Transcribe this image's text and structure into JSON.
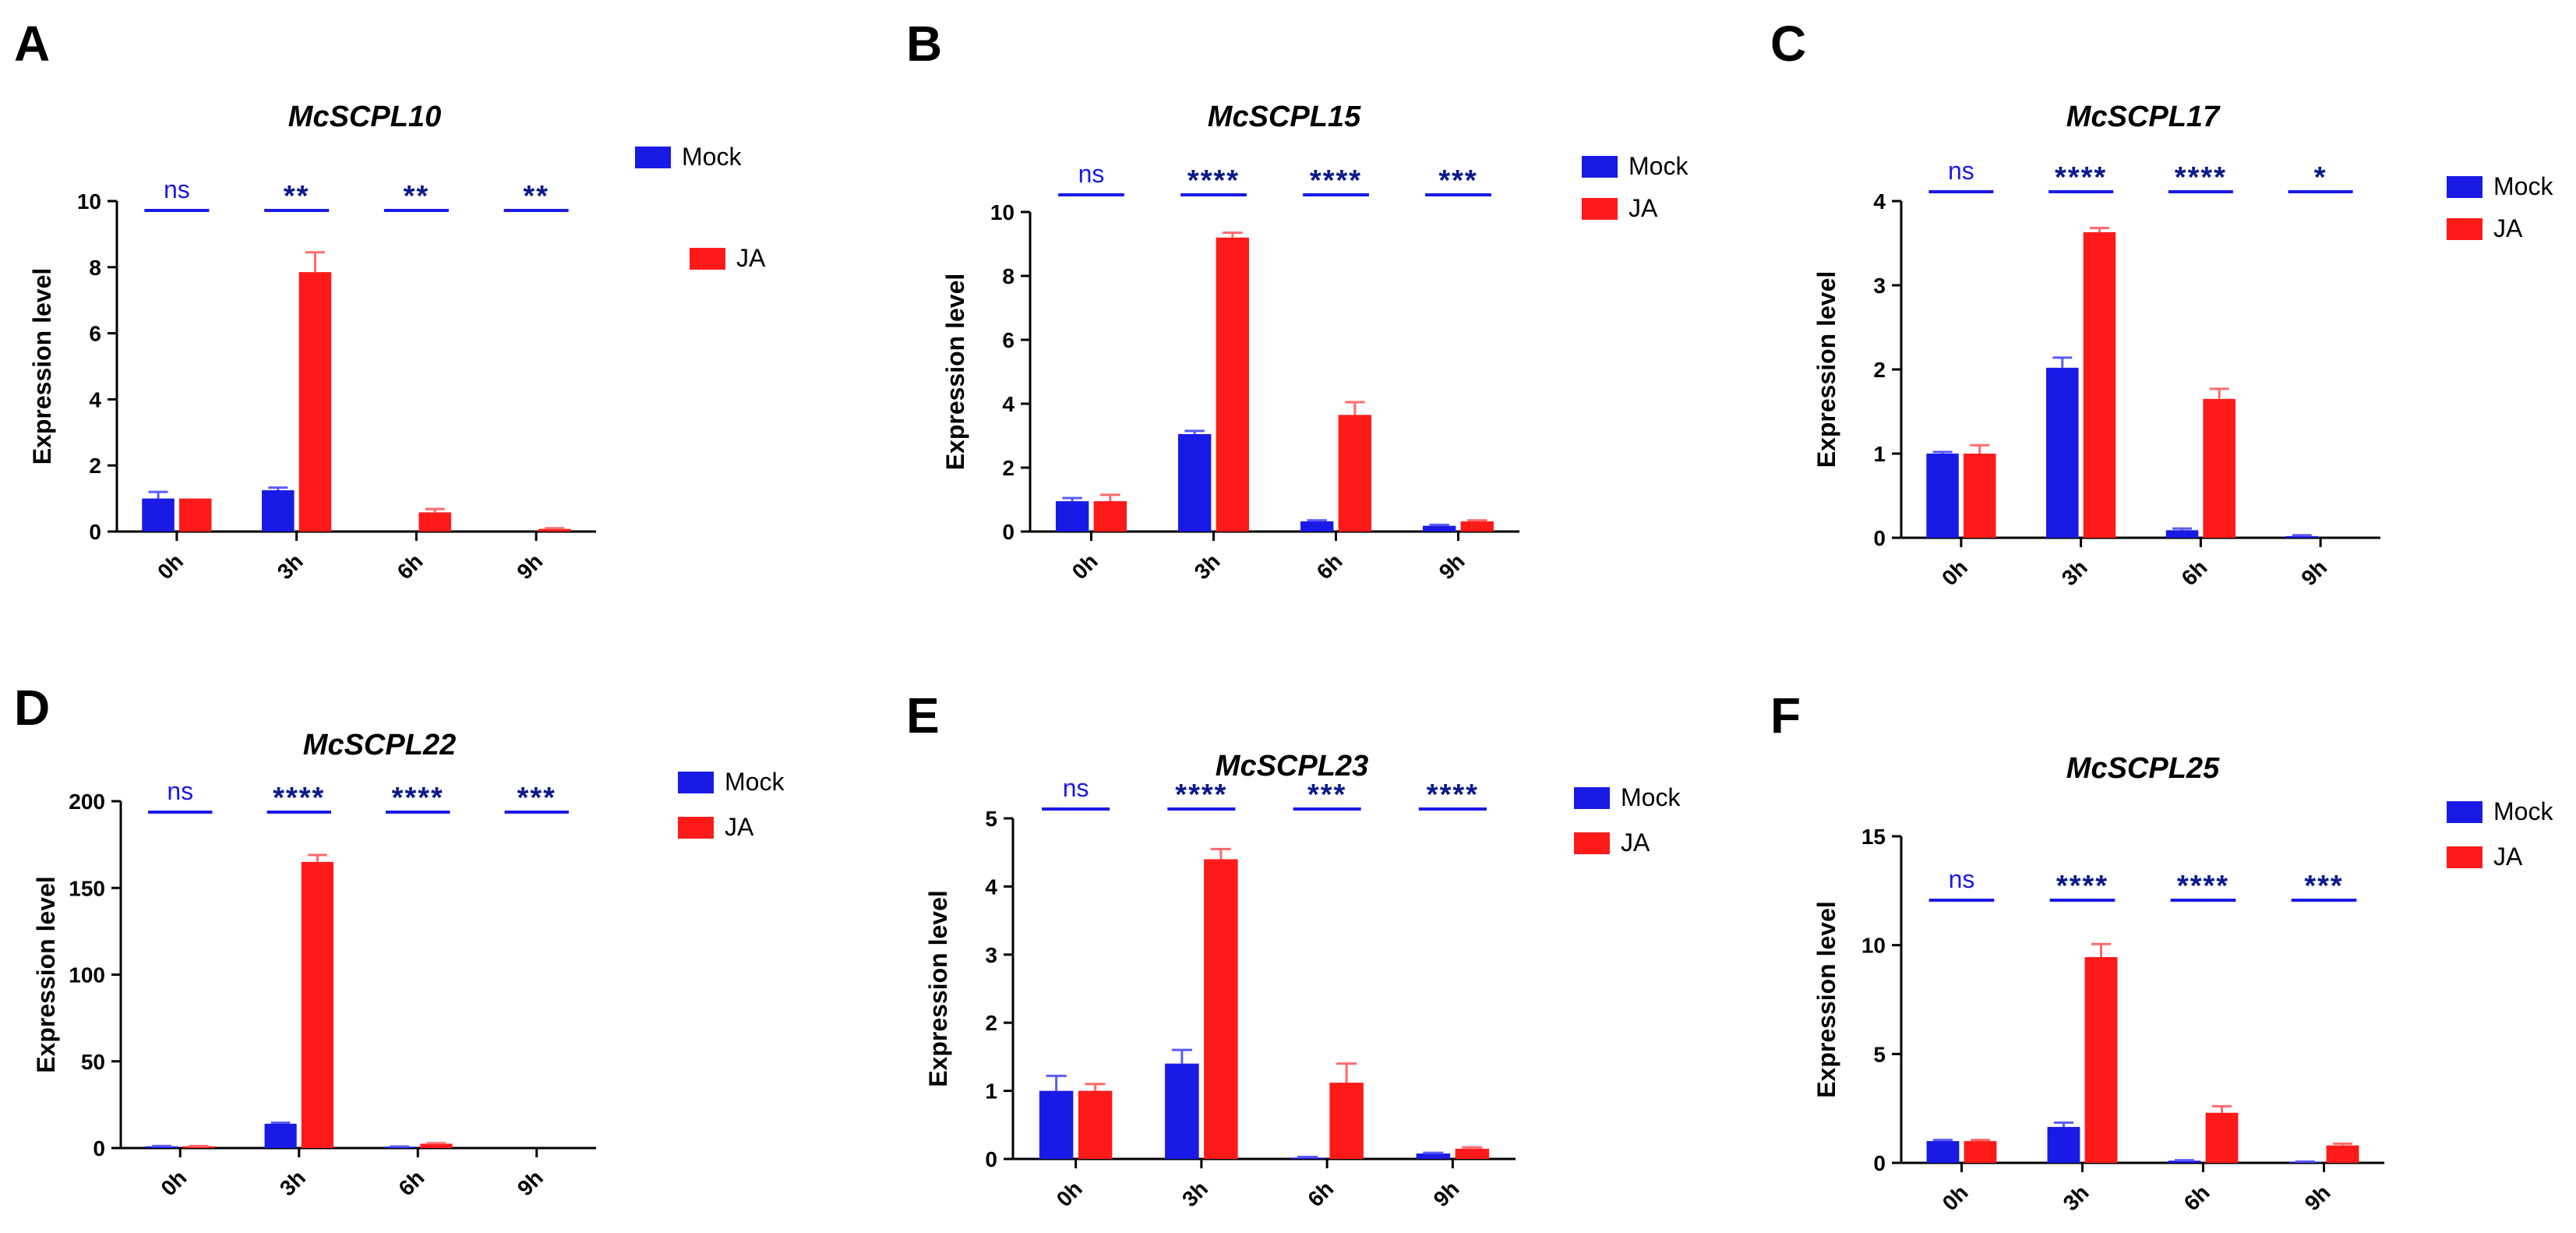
{
  "colors": {
    "mock": "#1a1ae6",
    "ja": "#ff1a1a",
    "mock_err": "#5a5aff",
    "ja_err": "#ff6a6a"
  },
  "chart_data": [
    {
      "panel": "A",
      "type": "bar",
      "title": "McSCPL10",
      "ylabel": "Expression level",
      "categories": [
        "0h",
        "3h",
        "6h",
        "9h"
      ],
      "ylim": [
        0,
        10
      ],
      "yticks": [
        0,
        2,
        4,
        6,
        8,
        10
      ],
      "legend": "stacked",
      "series": [
        {
          "name": "Mock",
          "values": [
            1.0,
            1.25,
            0.0,
            0.0
          ],
          "errors": [
            0.2,
            0.08,
            0.0,
            0.0
          ]
        },
        {
          "name": "JA",
          "values": [
            1.0,
            7.85,
            0.58,
            0.08
          ],
          "errors": [
            0.0,
            0.6,
            0.1,
            0.02
          ]
        }
      ],
      "significance": [
        "ns",
        "**",
        "**",
        "**"
      ]
    },
    {
      "panel": "B",
      "type": "bar",
      "title": "McSCPL15",
      "ylabel": "Expression level",
      "categories": [
        "0h",
        "3h",
        "6h",
        "9h"
      ],
      "ylim": [
        0,
        10
      ],
      "yticks": [
        0,
        2,
        4,
        6,
        8,
        10
      ],
      "legend": "normal",
      "series": [
        {
          "name": "Mock",
          "values": [
            0.95,
            3.05,
            0.32,
            0.18
          ],
          "errors": [
            0.1,
            0.1,
            0.03,
            0.03
          ]
        },
        {
          "name": "JA",
          "values": [
            0.95,
            9.2,
            3.65,
            0.32
          ],
          "errors": [
            0.2,
            0.15,
            0.4,
            0.03
          ]
        }
      ],
      "significance": [
        "ns",
        "****",
        "****",
        "***"
      ]
    },
    {
      "panel": "C",
      "type": "bar",
      "title": "McSCPL17",
      "ylabel": "Expression level",
      "categories": [
        "0h",
        "3h",
        "6h",
        "9h"
      ],
      "ylim": [
        0,
        4
      ],
      "yticks": [
        0,
        1,
        2,
        3,
        4
      ],
      "legend": "normal",
      "series": [
        {
          "name": "Mock",
          "values": [
            1.0,
            2.02,
            0.09,
            0.02
          ],
          "errors": [
            0.02,
            0.12,
            0.02,
            0.01
          ]
        },
        {
          "name": "JA",
          "values": [
            1.0,
            3.63,
            1.65,
            0.0
          ],
          "errors": [
            0.1,
            0.05,
            0.12,
            0.0
          ]
        }
      ],
      "significance": [
        "ns",
        "****",
        "****",
        "*"
      ]
    },
    {
      "panel": "D",
      "type": "bar",
      "title": "McSCPL22",
      "ylabel": "Expression level",
      "categories": [
        "0h",
        "3h",
        "6h",
        "9h"
      ],
      "ylim": [
        0,
        200
      ],
      "yticks": [
        0,
        50,
        100,
        150,
        200
      ],
      "legend": "normal",
      "series": [
        {
          "name": "Mock",
          "values": [
            1.0,
            14.0,
            0.8,
            0.1
          ],
          "errors": [
            0.2,
            0.6,
            0.1,
            0.0
          ]
        },
        {
          "name": "JA",
          "values": [
            1.0,
            165.0,
            2.5,
            0.1
          ],
          "errors": [
            0.2,
            4.0,
            0.3,
            0.0
          ]
        }
      ],
      "significance": [
        "ns",
        "****",
        "****",
        "***"
      ]
    },
    {
      "panel": "E",
      "type": "bar",
      "title": "McSCPL23",
      "ylabel": "Expression level",
      "categories": [
        "0h",
        "3h",
        "6h",
        "9h"
      ],
      "ylim": [
        0,
        5
      ],
      "yticks": [
        0,
        1,
        2,
        3,
        4,
        5
      ],
      "legend": "normal",
      "series": [
        {
          "name": "Mock",
          "values": [
            1.0,
            1.4,
            0.02,
            0.08
          ],
          "errors": [
            0.22,
            0.2,
            0.01,
            0.01
          ]
        },
        {
          "name": "JA",
          "values": [
            1.0,
            4.4,
            1.12,
            0.15
          ],
          "errors": [
            0.1,
            0.15,
            0.28,
            0.02
          ]
        }
      ],
      "significance": [
        "ns",
        "****",
        "***",
        "****"
      ]
    },
    {
      "panel": "F",
      "type": "bar",
      "title": "McSCPL25",
      "ylabel": "Expression level",
      "categories": [
        "0h",
        "3h",
        "6h",
        "9h"
      ],
      "ylim": [
        0,
        15
      ],
      "yticks": [
        0,
        5,
        10,
        15
      ],
      "legend": "normal",
      "series": [
        {
          "name": "Mock",
          "values": [
            1.0,
            1.65,
            0.1,
            0.05
          ],
          "errors": [
            0.05,
            0.2,
            0.02,
            0.01
          ]
        },
        {
          "name": "JA",
          "values": [
            1.0,
            9.45,
            2.3,
            0.8
          ],
          "errors": [
            0.05,
            0.6,
            0.3,
            0.08
          ]
        }
      ],
      "significance": [
        "ns",
        "****",
        "****",
        "***"
      ]
    }
  ]
}
